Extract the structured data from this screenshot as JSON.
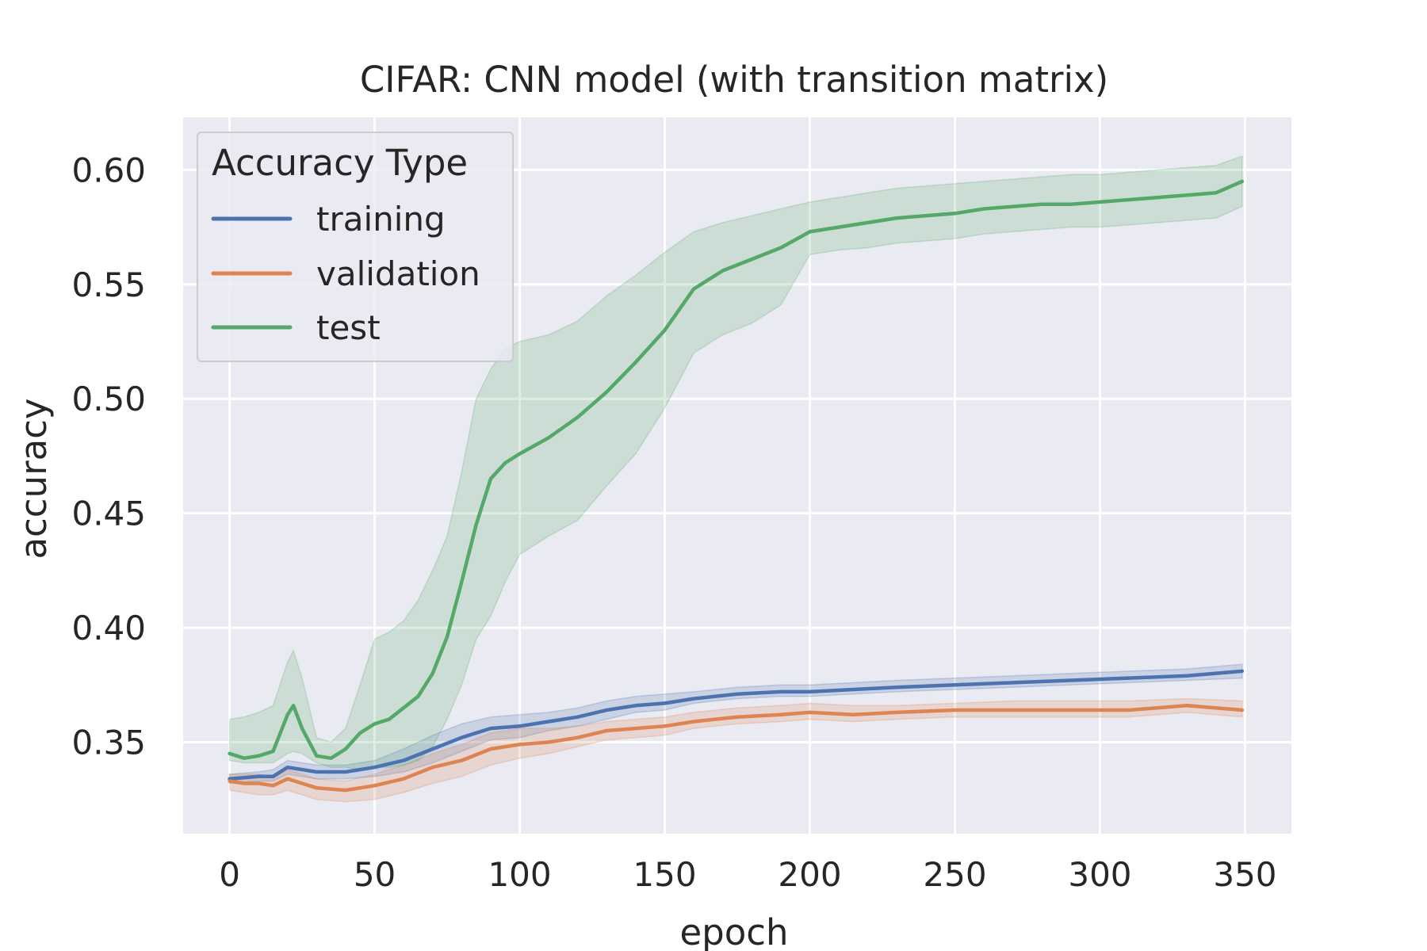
{
  "chart_data": {
    "type": "line",
    "title": "CIFAR: CNN model (with transition matrix)",
    "xlabel": "epoch",
    "ylabel": "accuracy",
    "xlim": [
      -16,
      366
    ],
    "ylim": [
      0.31,
      0.623
    ],
    "xticks": [
      0,
      50,
      100,
      150,
      200,
      250,
      300,
      350
    ],
    "xtick_labels": [
      "0",
      "50",
      "100",
      "150",
      "200",
      "250",
      "300",
      "350"
    ],
    "yticks": [
      0.35,
      0.4,
      0.45,
      0.5,
      0.55,
      0.6
    ],
    "ytick_labels": [
      "0.35",
      "0.40",
      "0.45",
      "0.50",
      "0.55",
      "0.60"
    ],
    "grid": true,
    "legend": {
      "title": "Accuracy Type",
      "position": "top-left"
    },
    "series": [
      {
        "name": "training",
        "color": "#4c72b0",
        "x": [
          0,
          10,
          15,
          20,
          25,
          30,
          40,
          50,
          60,
          70,
          80,
          90,
          100,
          110,
          120,
          130,
          140,
          150,
          160,
          175,
          190,
          200,
          215,
          230,
          250,
          270,
          290,
          310,
          330,
          349
        ],
        "y": [
          0.334,
          0.335,
          0.335,
          0.339,
          0.338,
          0.337,
          0.337,
          0.339,
          0.342,
          0.347,
          0.352,
          0.356,
          0.357,
          0.359,
          0.361,
          0.364,
          0.366,
          0.367,
          0.369,
          0.371,
          0.372,
          0.372,
          0.373,
          0.374,
          0.375,
          0.376,
          0.377,
          0.378,
          0.379,
          0.381
        ],
        "lower": [
          0.332,
          0.333,
          0.333,
          0.336,
          0.335,
          0.334,
          0.334,
          0.335,
          0.337,
          0.341,
          0.346,
          0.351,
          0.352,
          0.355,
          0.357,
          0.36,
          0.363,
          0.364,
          0.367,
          0.369,
          0.37,
          0.37,
          0.371,
          0.372,
          0.373,
          0.374,
          0.375,
          0.376,
          0.377,
          0.378
        ],
        "upper": [
          0.336,
          0.337,
          0.338,
          0.342,
          0.341,
          0.34,
          0.34,
          0.342,
          0.347,
          0.353,
          0.358,
          0.361,
          0.362,
          0.363,
          0.365,
          0.368,
          0.37,
          0.371,
          0.372,
          0.374,
          0.375,
          0.375,
          0.376,
          0.377,
          0.378,
          0.379,
          0.38,
          0.381,
          0.382,
          0.384
        ]
      },
      {
        "name": "validation",
        "color": "#dd8452",
        "x": [
          0,
          5,
          10,
          15,
          20,
          25,
          30,
          40,
          50,
          60,
          70,
          80,
          90,
          100,
          110,
          120,
          130,
          140,
          150,
          160,
          175,
          190,
          200,
          215,
          230,
          250,
          270,
          290,
          310,
          330,
          349
        ],
        "y": [
          0.333,
          0.332,
          0.332,
          0.331,
          0.334,
          0.332,
          0.33,
          0.329,
          0.331,
          0.334,
          0.339,
          0.342,
          0.347,
          0.349,
          0.35,
          0.352,
          0.355,
          0.356,
          0.357,
          0.359,
          0.361,
          0.362,
          0.363,
          0.362,
          0.363,
          0.364,
          0.364,
          0.364,
          0.364,
          0.366,
          0.364
        ],
        "lower": [
          0.329,
          0.328,
          0.327,
          0.327,
          0.329,
          0.327,
          0.325,
          0.324,
          0.325,
          0.328,
          0.332,
          0.335,
          0.34,
          0.343,
          0.345,
          0.348,
          0.351,
          0.352,
          0.353,
          0.356,
          0.358,
          0.359,
          0.36,
          0.359,
          0.36,
          0.361,
          0.361,
          0.361,
          0.361,
          0.363,
          0.361
        ],
        "upper": [
          0.336,
          0.336,
          0.336,
          0.335,
          0.338,
          0.336,
          0.334,
          0.333,
          0.336,
          0.34,
          0.345,
          0.349,
          0.354,
          0.356,
          0.356,
          0.357,
          0.359,
          0.36,
          0.361,
          0.363,
          0.365,
          0.366,
          0.367,
          0.366,
          0.366,
          0.367,
          0.368,
          0.368,
          0.368,
          0.369,
          0.368
        ]
      },
      {
        "name": "test",
        "color": "#55a868",
        "x": [
          0,
          5,
          10,
          15,
          20,
          22,
          25,
          30,
          35,
          40,
          45,
          50,
          55,
          60,
          65,
          70,
          75,
          80,
          85,
          90,
          95,
          100,
          110,
          120,
          130,
          140,
          150,
          160,
          170,
          180,
          190,
          200,
          210,
          220,
          230,
          240,
          250,
          260,
          270,
          280,
          290,
          300,
          310,
          320,
          330,
          340,
          349
        ],
        "y": [
          0.345,
          0.343,
          0.344,
          0.346,
          0.362,
          0.366,
          0.356,
          0.344,
          0.343,
          0.347,
          0.354,
          0.358,
          0.36,
          0.365,
          0.37,
          0.38,
          0.396,
          0.42,
          0.445,
          0.465,
          0.472,
          0.476,
          0.483,
          0.492,
          0.503,
          0.516,
          0.53,
          0.548,
          0.556,
          0.561,
          0.566,
          0.573,
          0.575,
          0.577,
          0.579,
          0.58,
          0.581,
          0.583,
          0.584,
          0.585,
          0.585,
          0.586,
          0.587,
          0.588,
          0.589,
          0.59,
          0.595
        ],
        "lower": [
          0.342,
          0.341,
          0.341,
          0.341,
          0.345,
          0.346,
          0.345,
          0.341,
          0.339,
          0.339,
          0.338,
          0.339,
          0.339,
          0.34,
          0.342,
          0.348,
          0.36,
          0.375,
          0.395,
          0.405,
          0.42,
          0.432,
          0.44,
          0.447,
          0.462,
          0.476,
          0.496,
          0.52,
          0.528,
          0.533,
          0.541,
          0.563,
          0.565,
          0.566,
          0.568,
          0.569,
          0.57,
          0.572,
          0.573,
          0.574,
          0.575,
          0.575,
          0.576,
          0.577,
          0.578,
          0.579,
          0.584
        ],
        "upper": [
          0.36,
          0.361,
          0.363,
          0.366,
          0.385,
          0.39,
          0.378,
          0.352,
          0.35,
          0.356,
          0.375,
          0.395,
          0.398,
          0.403,
          0.412,
          0.425,
          0.44,
          0.468,
          0.5,
          0.513,
          0.522,
          0.525,
          0.528,
          0.534,
          0.545,
          0.554,
          0.564,
          0.573,
          0.577,
          0.58,
          0.583,
          0.586,
          0.588,
          0.59,
          0.592,
          0.593,
          0.594,
          0.595,
          0.596,
          0.597,
          0.598,
          0.598,
          0.599,
          0.6,
          0.601,
          0.602,
          0.606
        ]
      }
    ]
  }
}
